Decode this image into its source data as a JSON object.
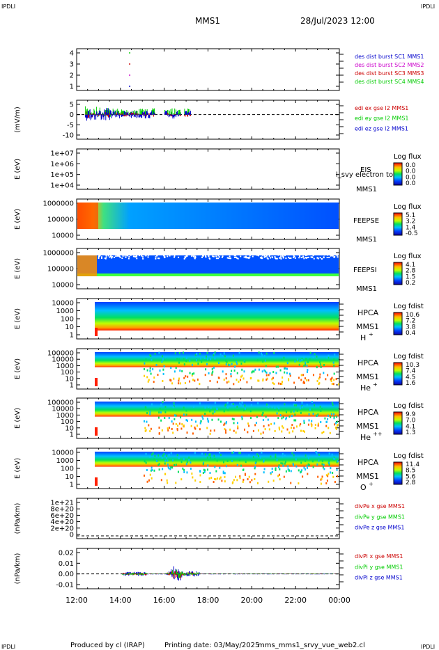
{
  "header": {
    "corner_tl": "IPDLI",
    "corner_tr": "IPDLI",
    "corner_bl": "IPDLI",
    "corner_br": "IPDLI",
    "mission": "MMS1",
    "datetime": "28/Jul/2023 12:00"
  },
  "footer": {
    "produced": "Produced by cl (IRAP)",
    "printed": "Printing date: 03/May/2025",
    "script": "mms_mms1_srvy_vue_web2.cl"
  },
  "time_axis": {
    "ticks": [
      "12:00",
      "14:00",
      "16:00",
      "18:00",
      "20:00",
      "22:00",
      "00:00"
    ],
    "hours": [
      0,
      2,
      4,
      6,
      8,
      10,
      12
    ]
  },
  "colors": {
    "blue": "#0000cc",
    "magenta": "#cc00cc",
    "red": "#cc0000",
    "green": "#00cc00"
  },
  "chart_data": [
    {
      "type": "scatter",
      "panel": "des dist burst",
      "yticks": [
        "4",
        "3",
        "2",
        "1"
      ],
      "ylim": [
        0.5,
        4.5
      ],
      "legend": [
        {
          "text": "des dist burst SC1 MMS1",
          "color": "#0000cc"
        },
        {
          "text": "des dist burst SC2 MMS2",
          "color": "#cc00cc"
        },
        {
          "text": "des dist burst SC3 MMS3",
          "color": "#cc0000"
        },
        {
          "text": "des dist burst SC4 MMS4",
          "color": "#00cc00"
        }
      ],
      "points": [
        {
          "t": 2.4,
          "y": 4,
          "series": "SC4"
        },
        {
          "t": 2.4,
          "y": 3,
          "series": "SC3"
        },
        {
          "t": 2.4,
          "y": 2,
          "series": "SC2"
        },
        {
          "t": 2.4,
          "y": 1,
          "series": "SC1"
        }
      ]
    },
    {
      "type": "line",
      "panel": "edi e gse",
      "ylabel": "(mV/m)",
      "yticks": [
        "5",
        "0",
        "-5",
        "-10"
      ],
      "ylim": [
        -11,
        7
      ],
      "legend": [
        {
          "text": "edi ex gse l2 MMS1",
          "color": "#cc0000"
        },
        {
          "text": "edi ey gse l2 MMS1",
          "color": "#00cc00"
        },
        {
          "text": "edi ez gse l2 MMS1",
          "color": "#0000cc"
        }
      ],
      "data_span_hours": [
        0.4,
        5.2
      ]
    },
    {
      "type": "heatmap",
      "panel": "EIS",
      "ylabel": "E (eV)",
      "yticks": [
        "1e+07",
        "1e+06",
        "1e+05",
        "1e+04"
      ],
      "labels": [
        "EIS",
        "MMS1"
      ],
      "overlay_text": "l_svy electron to",
      "colorbar": {
        "title": "Log flux",
        "ticks": [
          "0.0",
          "0.0",
          "0.0",
          "0.0"
        ]
      }
    },
    {
      "type": "heatmap",
      "panel": "FEEPSE",
      "ylabel": "E (eV)",
      "yticks": [
        "1000000",
        "100000",
        "10000"
      ],
      "labels": [
        "FEEPSE",
        "MMS1"
      ],
      "colorbar": {
        "title": "Log flux",
        "ticks": [
          "5.1",
          "3.2",
          "1.4",
          "-0.5"
        ]
      }
    },
    {
      "type": "heatmap",
      "panel": "FEEPSI",
      "ylabel": "E (eV)",
      "yticks": [
        "1000000",
        "100000",
        "10000"
      ],
      "labels": [
        "FEEPSI",
        "MMS1"
      ],
      "colorbar": {
        "title": "Log flux",
        "ticks": [
          "4.1",
          "2.8",
          "1.5",
          "0.2"
        ]
      }
    },
    {
      "type": "heatmap",
      "panel": "HPCA H+",
      "ylabel": "E (eV)",
      "yticks": [
        "10000",
        "1000",
        "100",
        "10",
        "1"
      ],
      "labels": [
        "HPCA",
        "MMS1",
        "H",
        "+"
      ],
      "colorbar": {
        "title": "Log fdist",
        "ticks": [
          "10.6",
          "7.2",
          "3.8",
          "0.4"
        ]
      }
    },
    {
      "type": "heatmap",
      "panel": "HPCA He+",
      "ylabel": "E (eV)",
      "yticks": [
        "100000",
        "10000",
        "1000",
        "100",
        "10",
        "1"
      ],
      "labels": [
        "HPCA",
        "MMS1",
        "He",
        "+"
      ],
      "colorbar": {
        "title": "Log fdist",
        "ticks": [
          "10.3",
          "7.4",
          "4.5",
          "1.6"
        ]
      }
    },
    {
      "type": "heatmap",
      "panel": "HPCA He++",
      "ylabel": "E (eV)",
      "yticks": [
        "100000",
        "10000",
        "1000",
        "100",
        "10",
        "1"
      ],
      "labels": [
        "HPCA",
        "MMS1",
        "He",
        "++"
      ],
      "colorbar": {
        "title": "Log fdist",
        "ticks": [
          "9.9",
          "7.0",
          "4.1",
          "1.3"
        ]
      }
    },
    {
      "type": "heatmap",
      "panel": "HPCA O+",
      "ylabel": "E (eV)",
      "yticks": [
        "10000",
        "1000",
        "100",
        "10",
        "1"
      ],
      "labels": [
        "HPCA",
        "MMS1",
        "O",
        "+"
      ],
      "colorbar": {
        "title": "Log fdist",
        "ticks": [
          "11.4",
          "8.5",
          "5.6",
          "2.8"
        ]
      }
    },
    {
      "type": "line",
      "panel": "divPe",
      "ylabel": "(nPa/km)",
      "yticks": [
        "1e+21",
        "8e+20",
        "6e+20",
        "4e+20",
        "2e+20",
        "0"
      ],
      "legend": [
        {
          "text": "divPe x gse MMS1",
          "color": "#cc0000"
        },
        {
          "text": "divPe y gse MMS1",
          "color": "#00cc00"
        },
        {
          "text": "divPe z gse MMS1",
          "color": "#0000cc"
        }
      ]
    },
    {
      "type": "line",
      "panel": "divPi",
      "ylabel": "(nPa/km)",
      "yticks": [
        "0.02",
        "0.01",
        "0.00",
        "-0.01"
      ],
      "ylim": [
        -0.015,
        0.025
      ],
      "legend": [
        {
          "text": "divPi x gse MMS1",
          "color": "#cc0000"
        },
        {
          "text": "divPi y gse MMS1",
          "color": "#00cc00"
        },
        {
          "text": "divPi z gse MMS1",
          "color": "#0000cc"
        }
      ]
    }
  ]
}
